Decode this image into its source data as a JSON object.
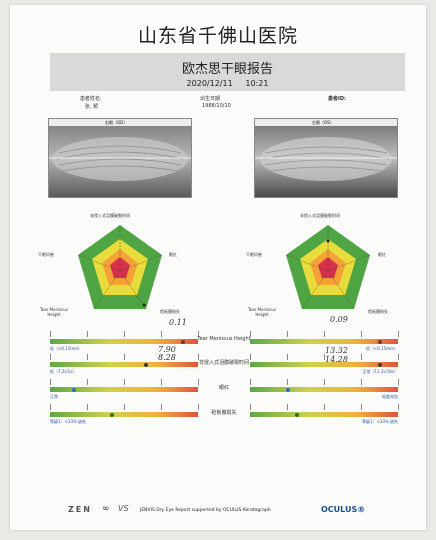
{
  "header": {
    "hospital": "山东省千佛山医院",
    "report_title": "欧杰思干眼报告",
    "datetime": "2020/12/11     10:21"
  },
  "patient": {
    "name_label": "患者姓名:",
    "name_value": "张, 颖",
    "dob_label": "出生日期",
    "dob_value": "1988/10/10",
    "id_label": "患者ID:"
  },
  "eyes": {
    "right_label": "右眼（OD）",
    "left_label": "左眼（OS）"
  },
  "radar": {
    "top_label": "非侵入式泪膜破裂时间",
    "left_label": "干眼问卷",
    "right_label": "眼红",
    "bottom_right_label": "睑板腺损失",
    "bottom_left_label": "Tear Meniscus Height"
  },
  "handwritten": {
    "od_loss": "0.11",
    "os_meniscus": "0.09",
    "od_but1": "7.90",
    "od_but2": "8.28",
    "os_but1": "13.32",
    "os_but2": "14.28"
  },
  "metrics": [
    {
      "name": "Tear Meniscus Height",
      "left_text": "低（<0.15mm）",
      "right_text": "低（<0.15mm）",
      "od_value": 0.9,
      "os_value": 0.88
    },
    {
      "name": "非侵入式泪膜破裂时间",
      "left_text": "低（7.2s/1s）",
      "right_text": "正常（11.2s/16s）",
      "od_value": 0.65,
      "os_value": 0.88
    },
    {
      "name": "眼红",
      "left_text": "正常",
      "right_text": "轻度充血",
      "od_value": 0.16,
      "os_value": 0.26
    },
    {
      "name": "睑板腺损失",
      "left_text": "等级1：<33% 缺失",
      "right_text": "等级1：<33% 缺失",
      "od_value": 0.42,
      "os_value": 0.32
    }
  ],
  "footer": {
    "text": "JENVIS Dry Eye Report supported by OCULUS Keratograph",
    "brand": "OCULUS®",
    "logo1": "ZEN",
    "logo2": "VS"
  },
  "colors": {
    "green": "#4fa443",
    "yellow": "#e7dc3c",
    "orange": "#f3a238",
    "red": "#d9304c"
  }
}
